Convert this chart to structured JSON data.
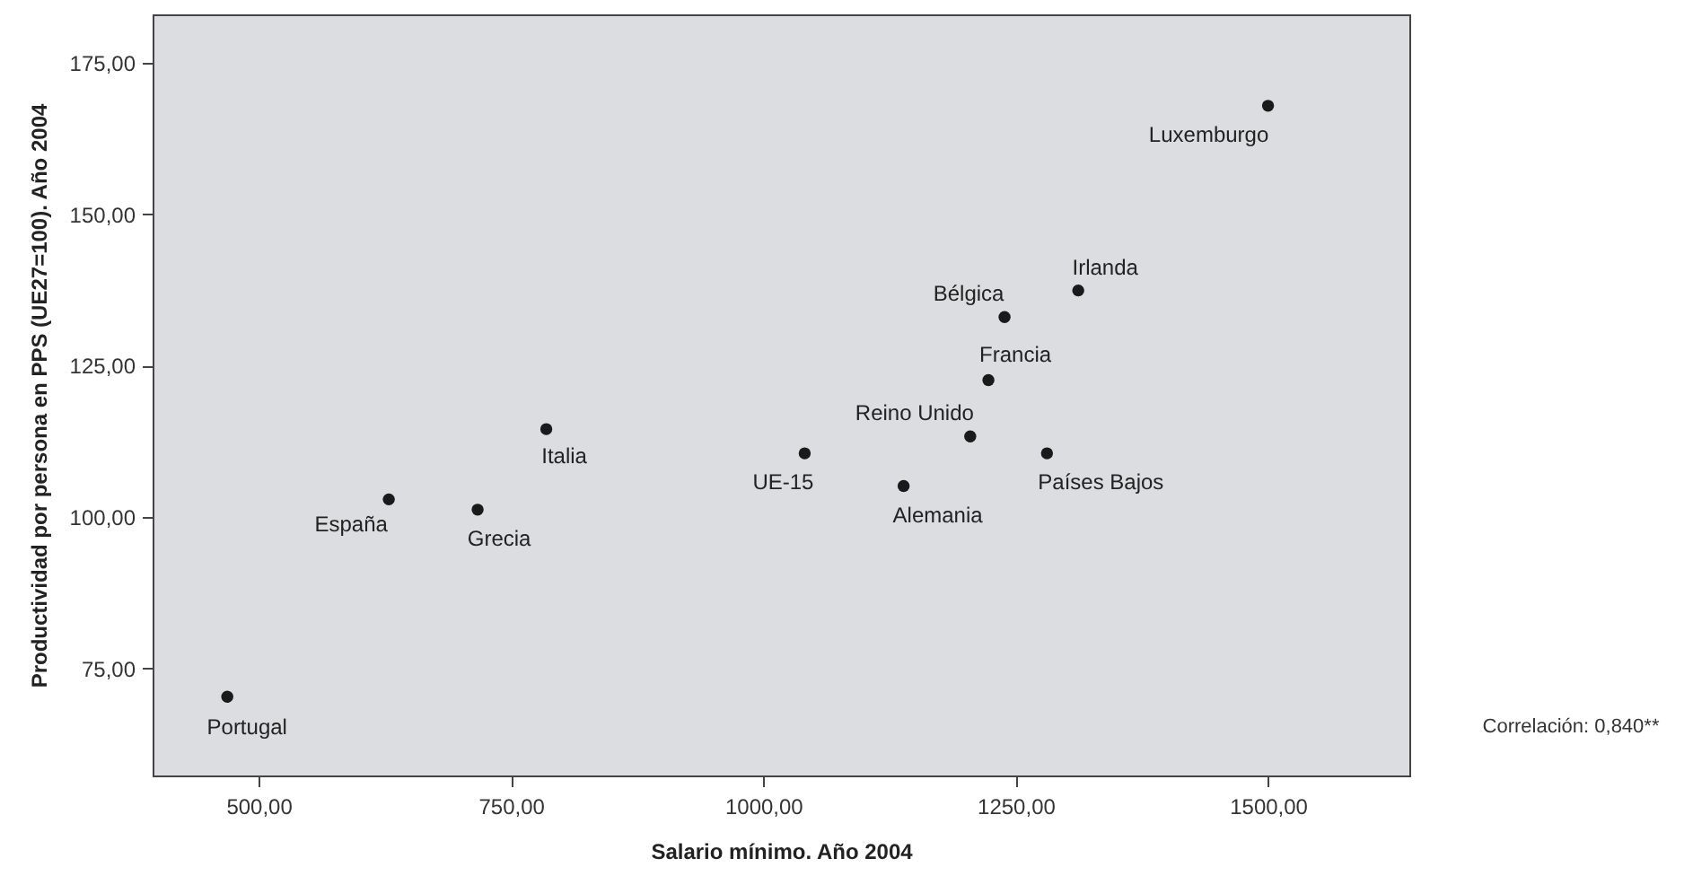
{
  "chart_data": {
    "type": "scatter",
    "xlabel": "Salario mínimo. Año 2004",
    "ylabel": "Productividad por persona en PPS (UE27=100). Año 2004",
    "x": [
      469,
      629,
      717,
      785,
      1041,
      1139,
      1205,
      1281,
      1223,
      1239,
      1312,
      1500
    ],
    "series": [
      {
        "color": "#1a1a1a",
        "values": [
          70.3,
          102.9,
          101.2,
          114.5,
          110.5,
          105.1,
          113.3,
          110.5,
          122.6,
          133,
          137.4,
          167.9
        ]
      }
    ],
    "xlim": [
      395,
      1640
    ],
    "ylim": [
      57.3,
      183
    ],
    "xticks": [
      {
        "value": 500,
        "label": "500,00"
      },
      {
        "value": 750,
        "label": "750,00"
      },
      {
        "value": 1000,
        "label": "1000,00"
      },
      {
        "value": 1250,
        "label": "1250,00"
      },
      {
        "value": 1500,
        "label": "1500,00"
      }
    ],
    "yticks": [
      {
        "value": 75,
        "label": "75,00"
      },
      {
        "value": 100,
        "label": "100,00"
      },
      {
        "value": 125,
        "label": "125,00"
      },
      {
        "value": 150,
        "label": "150,00"
      },
      {
        "value": 175,
        "label": "175,00"
      }
    ],
    "grid": false,
    "marker": "circle",
    "annotations": [
      {
        "text": "Portugal",
        "x": 469,
        "y": 70.3
      },
      {
        "text": "España",
        "x": 629,
        "y": 102.9
      },
      {
        "text": "Grecia",
        "x": 717,
        "y": 101.2
      },
      {
        "text": "Italia",
        "x": 785,
        "y": 114.5
      },
      {
        "text": "UE-15",
        "x": 1041,
        "y": 110.5
      },
      {
        "text": "Alemania",
        "x": 1139,
        "y": 105.1
      },
      {
        "text": "Reino Unido",
        "x": 1205,
        "y": 113.3
      },
      {
        "text": "Países Bajos",
        "x": 1281,
        "y": 110.5
      },
      {
        "text": "Francia",
        "x": 1223,
        "y": 122.6
      },
      {
        "text": "Bélgica",
        "x": 1239,
        "y": 133
      },
      {
        "text": "Irlanda",
        "x": 1312,
        "y": 137.4
      },
      {
        "text": "Luxemburgo",
        "x": 1500,
        "y": 167.9
      },
      "Correlación: 0,840**"
    ]
  }
}
